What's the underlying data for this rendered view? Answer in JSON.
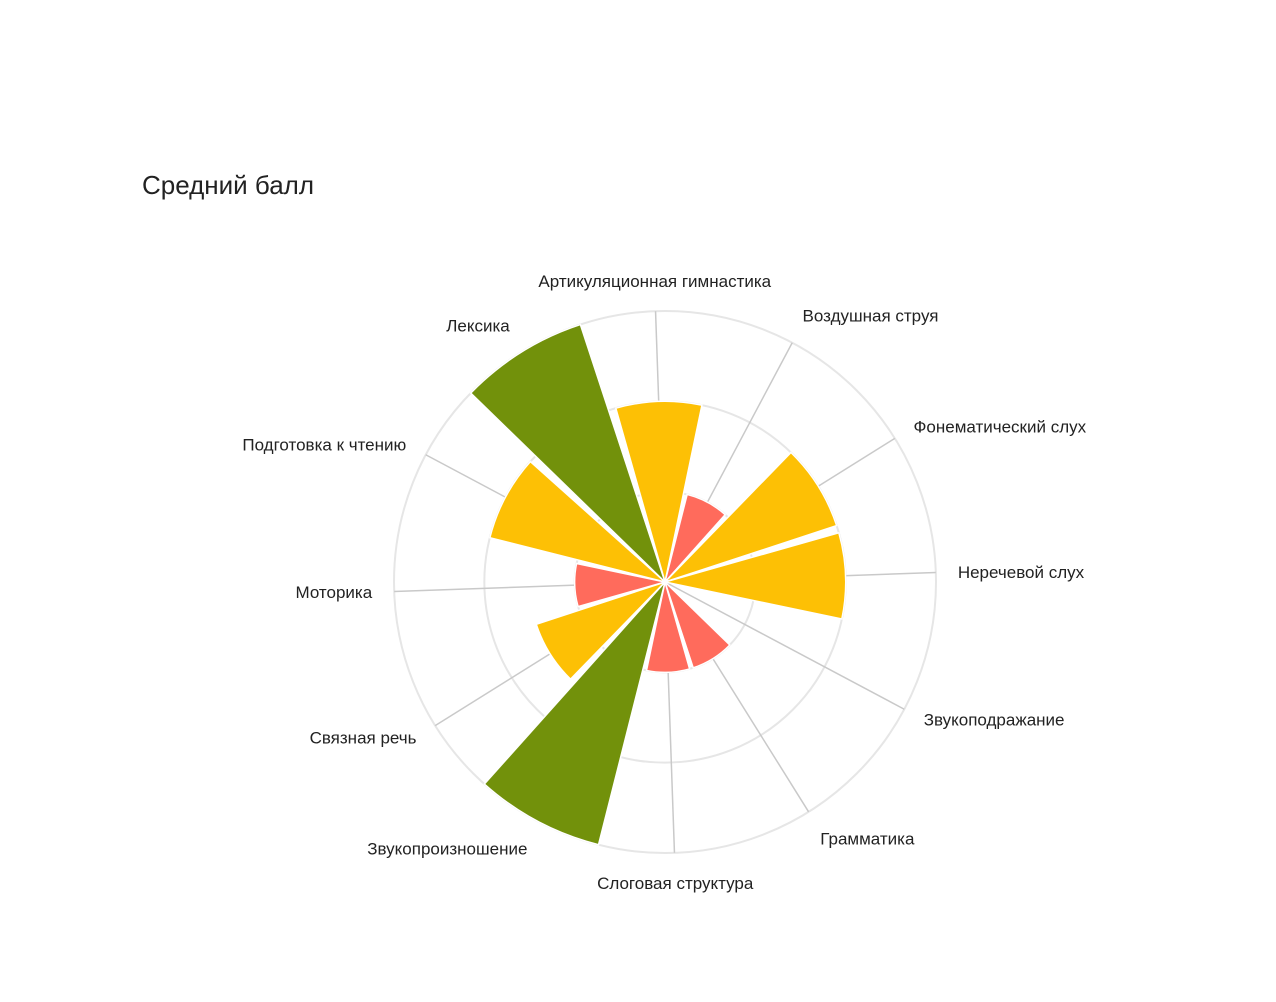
{
  "chart_data": {
    "type": "polar-area",
    "title": "Средний балл",
    "rlim": [
      0,
      3
    ],
    "grid": true,
    "categories": [
      "Артикуляционная гимнастика",
      "Воздушная струя",
      "Фонематический слух",
      "Неречевой слух",
      "Звукоподражание",
      "Грамматика",
      "Слоговая структура",
      "Звукопроизношение",
      "Связная речь",
      "Моторика",
      "Подготовка к чтению",
      "Лексика"
    ],
    "values": [
      2.0,
      1.0,
      2.0,
      2.0,
      0.0,
      1.0,
      1.0,
      3.0,
      1.5,
      1.0,
      2.0,
      3.0
    ],
    "colors": [
      "#fdc005",
      "#ff6b5c",
      "#fdc005",
      "#fdc005",
      "#fdc005",
      "#ff6b5c",
      "#ff6b5c",
      "#72910b",
      "#fdc005",
      "#ff6b5c",
      "#fdc005",
      "#72910b"
    ]
  }
}
